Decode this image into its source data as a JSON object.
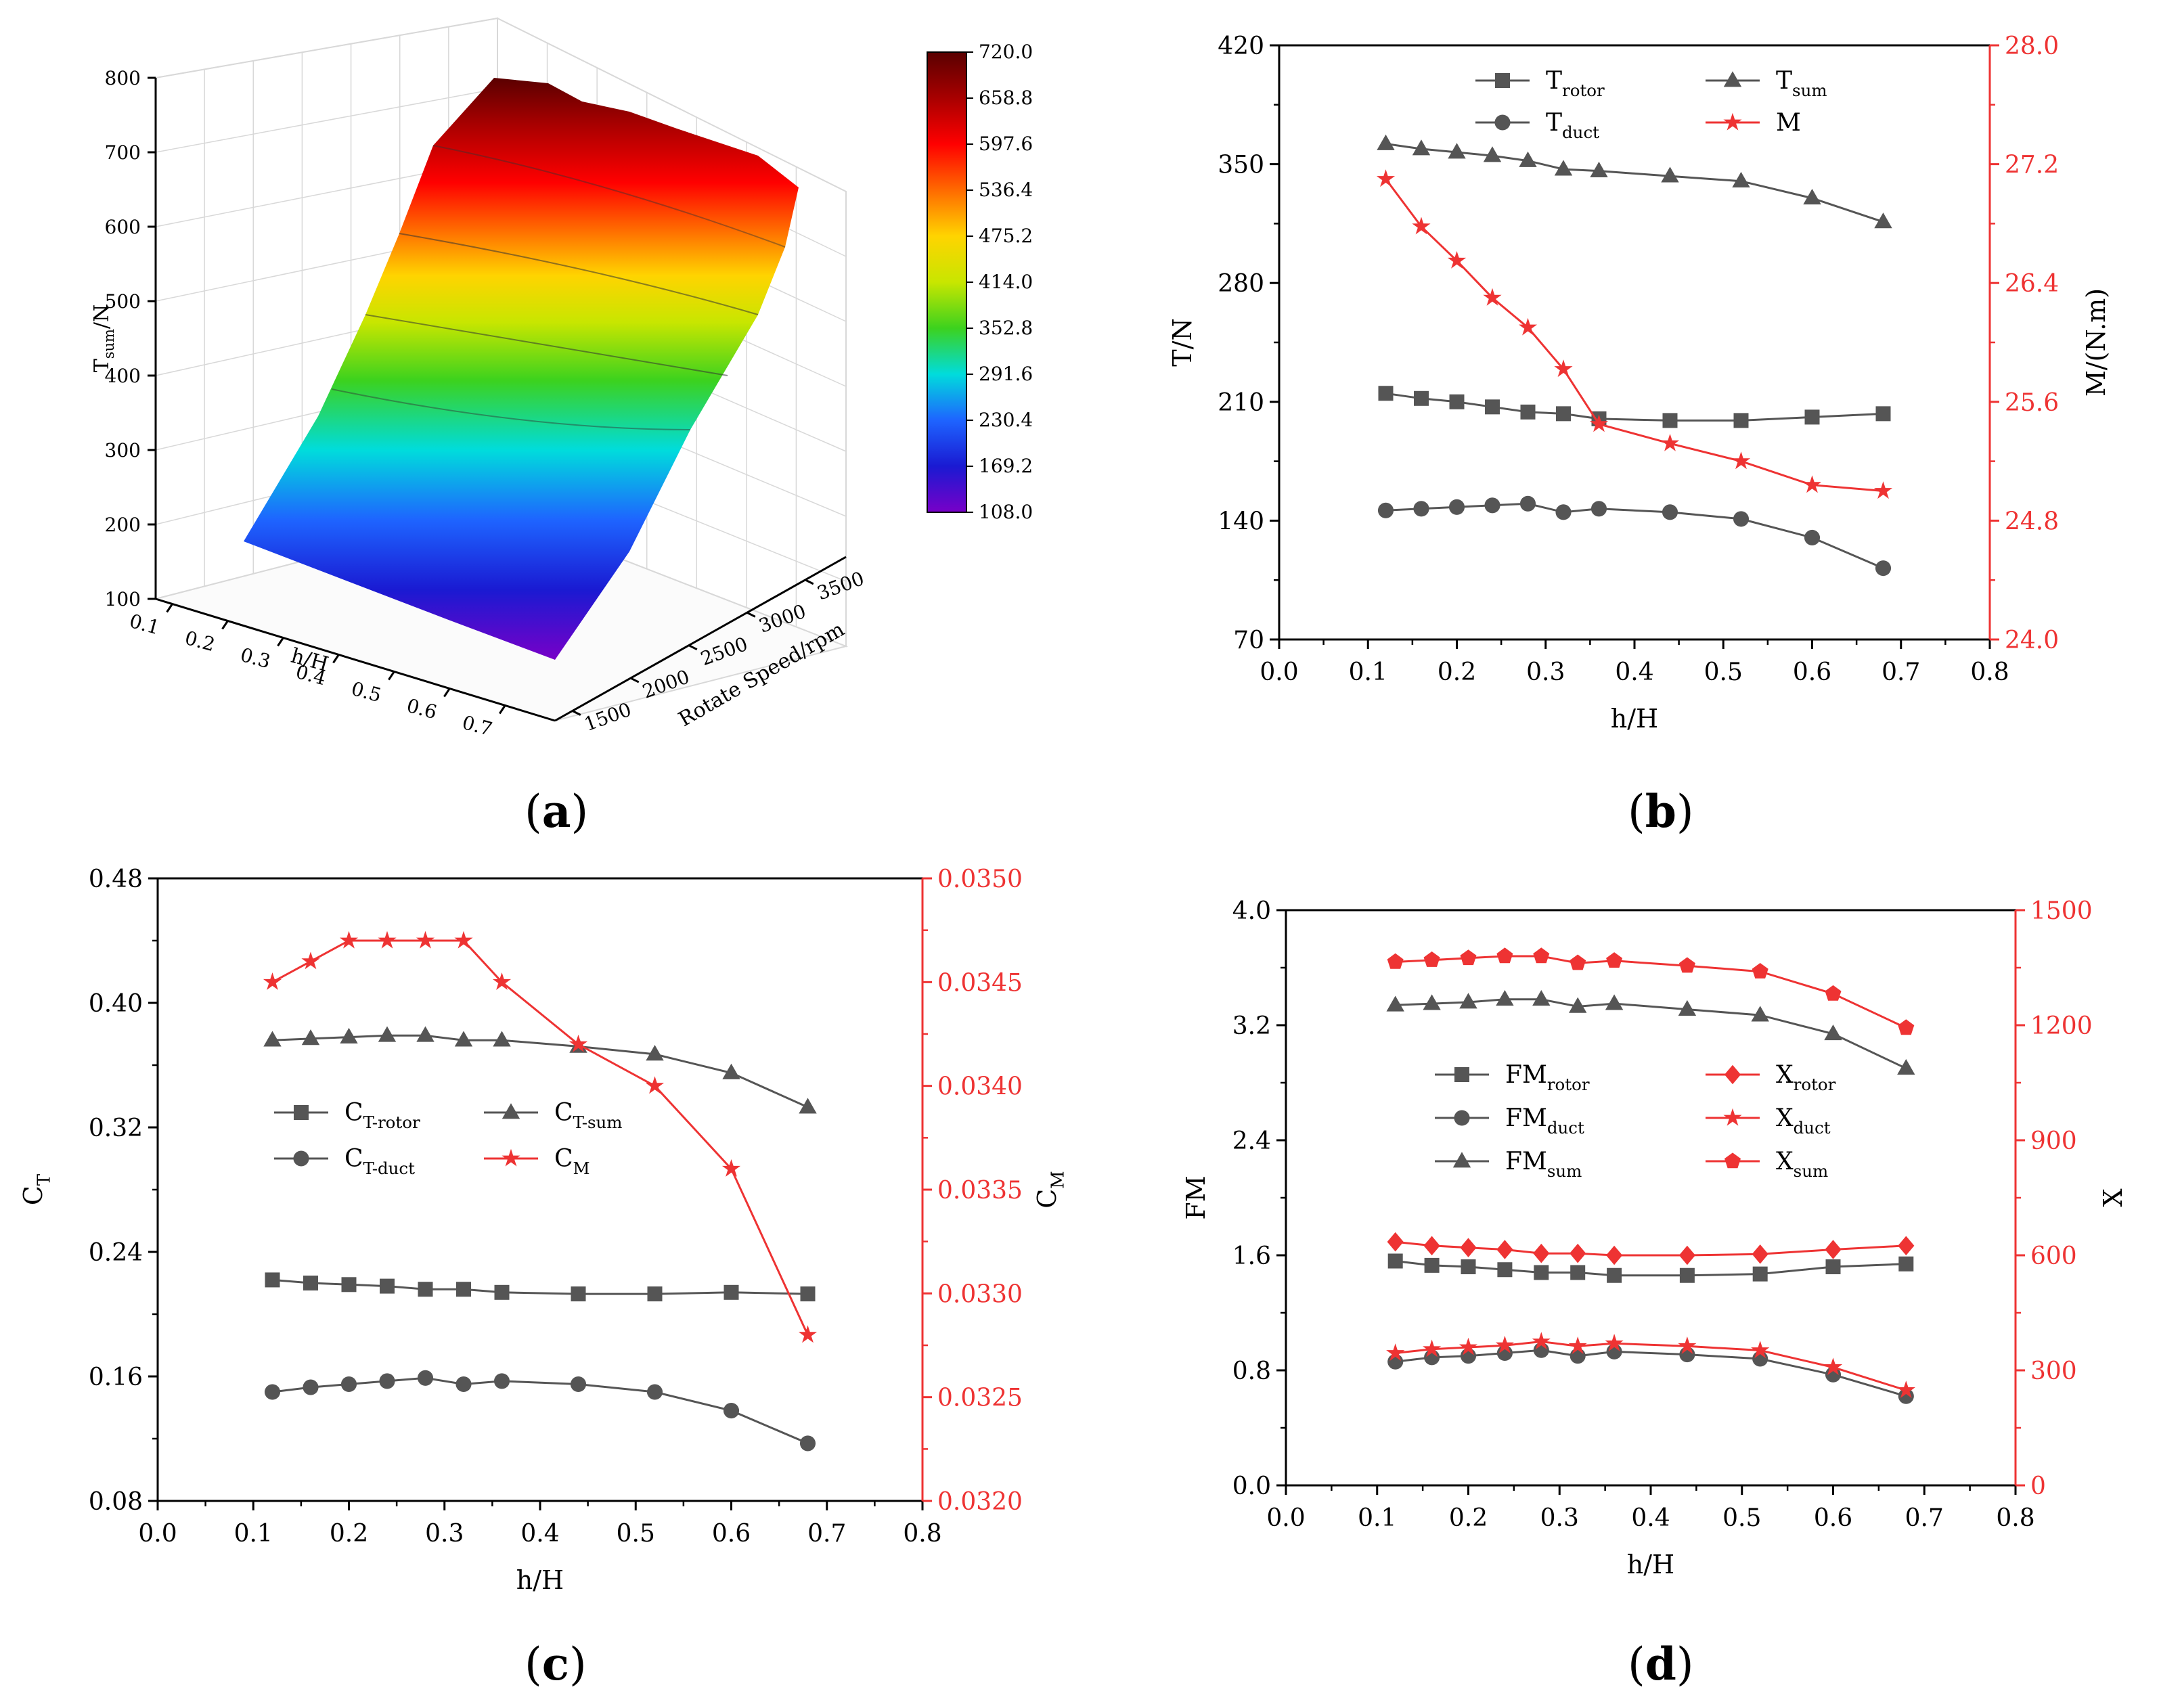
{
  "panels": {
    "a": {
      "label": "a",
      "chart_data": {
        "type": "surface3d",
        "title": "",
        "xlabel": "h/H",
        "ylabel": "Rotate Speed/rpm",
        "zlabel": "T_sum/N",
        "xticks": [
          "0.1",
          "0.2",
          "0.3",
          "0.4",
          "0.5",
          "0.6",
          "0.7"
        ],
        "yticks": [
          "1500",
          "2000",
          "2500",
          "3000",
          "3500"
        ],
        "zticks": [
          "100",
          "200",
          "300",
          "400",
          "500",
          "600",
          "700",
          "800"
        ],
        "colorbar_ticks": [
          "720.0",
          "658.8",
          "597.6",
          "536.4",
          "475.2",
          "414.0",
          "352.8",
          "291.6",
          "230.4",
          "169.2",
          "108.0"
        ],
        "colorbar_range": [
          108.0,
          720.0
        ],
        "colors": [
          "#5a0000",
          "#a80000",
          "#ff0000",
          "#ff6a00",
          "#ffd400",
          "#c8e600",
          "#3cd21e",
          "#00dcdc",
          "#1e64ff",
          "#1a1ad2",
          "#7800c8"
        ]
      }
    },
    "b": {
      "label": "b",
      "chart_data": {
        "type": "line",
        "xlabel": "h/H",
        "ylabel": "T/N",
        "ylabel_right": "M/(N.m)",
        "xlim": [
          0.0,
          0.8
        ],
        "ylim": [
          70,
          420
        ],
        "ylim_right": [
          24.0,
          28.0
        ],
        "xticks": [
          "0.0",
          "0.1",
          "0.2",
          "0.3",
          "0.4",
          "0.5",
          "0.6",
          "0.7",
          "0.8"
        ],
        "yticks": [
          "70",
          "140",
          "210",
          "280",
          "350",
          "420"
        ],
        "yticks_right": [
          "24.0",
          "24.8",
          "25.6",
          "26.4",
          "27.2",
          "28.0"
        ],
        "x": [
          0.12,
          0.16,
          0.2,
          0.24,
          0.28,
          0.32,
          0.36,
          0.44,
          0.52,
          0.6,
          0.68
        ],
        "series": [
          {
            "name": "T",
            "sub": "rotor",
            "axis": "left",
            "marker": "square",
            "color": "#555555",
            "values": [
              215,
              212,
              210,
              207,
              204,
              203,
              200,
              199,
              199,
              201,
              203
            ]
          },
          {
            "name": "T",
            "sub": "duct",
            "axis": "left",
            "marker": "circle",
            "color": "#555555",
            "values": [
              146,
              147,
              148,
              149,
              150,
              145,
              147,
              145,
              141,
              130,
              112
            ]
          },
          {
            "name": "T",
            "sub": "sum",
            "axis": "left",
            "marker": "triangle",
            "color": "#555555",
            "values": [
              362,
              359,
              357,
              355,
              352,
              347,
              346,
              343,
              340,
              330,
              316
            ]
          },
          {
            "name": "M",
            "sub": "",
            "axis": "right",
            "marker": "star",
            "color": "#ee3333",
            "values": [
              27.1,
              26.78,
              26.55,
              26.3,
              26.1,
              25.82,
              25.45,
              25.32,
              25.2,
              25.04,
              25.0
            ]
          }
        ]
      }
    },
    "c": {
      "label": "c",
      "chart_data": {
        "type": "line",
        "xlabel": "h/H",
        "ylabel": "C",
        "ylabel_sub": "T",
        "ylabel_right": "C",
        "ylabel_right_sub": "M",
        "xlim": [
          0.0,
          0.8
        ],
        "ylim": [
          0.08,
          0.48
        ],
        "ylim_right": [
          0.032,
          0.035
        ],
        "xticks": [
          "0.0",
          "0.1",
          "0.2",
          "0.3",
          "0.4",
          "0.5",
          "0.6",
          "0.7",
          "0.8"
        ],
        "yticks": [
          "0.08",
          "0.16",
          "0.24",
          "0.32",
          "0.40",
          "0.48"
        ],
        "yticks_right": [
          "0.0320",
          "0.0325",
          "0.0330",
          "0.0335",
          "0.0340",
          "0.0345",
          "0.0350"
        ],
        "x": [
          0.12,
          0.16,
          0.2,
          0.24,
          0.28,
          0.32,
          0.36,
          0.44,
          0.52,
          0.6,
          0.68
        ],
        "series": [
          {
            "name": "C",
            "sub": "T-rotor",
            "axis": "left",
            "marker": "square",
            "color": "#555555",
            "values": [
              0.222,
              0.22,
              0.219,
              0.218,
              0.216,
              0.216,
              0.214,
              0.213,
              0.213,
              0.214,
              0.213
            ]
          },
          {
            "name": "C",
            "sub": "T-duct",
            "axis": "left",
            "marker": "circle",
            "color": "#555555",
            "values": [
              0.15,
              0.153,
              0.155,
              0.157,
              0.159,
              0.155,
              0.157,
              0.155,
              0.15,
              0.138,
              0.117
            ]
          },
          {
            "name": "C",
            "sub": "T-sum",
            "axis": "left",
            "marker": "triangle",
            "color": "#555555",
            "values": [
              0.376,
              0.377,
              0.378,
              0.379,
              0.379,
              0.376,
              0.376,
              0.372,
              0.367,
              0.355,
              0.333
            ]
          },
          {
            "name": "C",
            "sub": "M",
            "axis": "right",
            "marker": "star",
            "color": "#ee3333",
            "values": [
              0.0345,
              0.0346,
              0.0347,
              0.0347,
              0.0347,
              0.0347,
              0.0345,
              0.0342,
              0.034,
              0.0336,
              0.0328
            ]
          }
        ]
      }
    },
    "d": {
      "label": "d",
      "chart_data": {
        "type": "line",
        "xlabel": "h/H",
        "ylabel": "FM",
        "ylabel_right": "X",
        "xlim": [
          0.0,
          0.8
        ],
        "ylim": [
          0.0,
          4.0
        ],
        "ylim_right": [
          0,
          1500
        ],
        "xticks": [
          "0.0",
          "0.1",
          "0.2",
          "0.3",
          "0.4",
          "0.5",
          "0.6",
          "0.7",
          "0.8"
        ],
        "yticks": [
          "0.0",
          "0.8",
          "1.6",
          "2.4",
          "3.2",
          "4.0"
        ],
        "yticks_right": [
          "0",
          "300",
          "600",
          "900",
          "1200",
          "1500"
        ],
        "x": [
          0.12,
          0.16,
          0.2,
          0.24,
          0.28,
          0.32,
          0.36,
          0.44,
          0.52,
          0.6,
          0.68
        ],
        "series": [
          {
            "name": "FM",
            "sub": "rotor",
            "axis": "left",
            "marker": "square",
            "color": "#555555",
            "values": [
              1.56,
              1.53,
              1.52,
              1.5,
              1.48,
              1.48,
              1.46,
              1.46,
              1.47,
              1.52,
              1.54
            ]
          },
          {
            "name": "FM",
            "sub": "duct",
            "axis": "left",
            "marker": "circle",
            "color": "#555555",
            "values": [
              0.86,
              0.89,
              0.9,
              0.92,
              0.94,
              0.9,
              0.93,
              0.91,
              0.88,
              0.77,
              0.62
            ]
          },
          {
            "name": "FM",
            "sub": "sum",
            "axis": "left",
            "marker": "triangle",
            "color": "#555555",
            "values": [
              3.34,
              3.35,
              3.36,
              3.38,
              3.38,
              3.33,
              3.35,
              3.31,
              3.27,
              3.14,
              2.9
            ]
          },
          {
            "name": "X",
            "sub": "rotor",
            "axis": "right",
            "marker": "diamond",
            "color": "#ee3333",
            "values": [
              635,
              625,
              620,
              615,
              605,
              605,
              600,
              600,
              603,
              615,
              625
            ]
          },
          {
            "name": "X",
            "sub": "duct",
            "axis": "right",
            "marker": "star",
            "color": "#ee3333",
            "values": [
              345,
              355,
              360,
              365,
              375,
              363,
              370,
              363,
              352,
              308,
              248
            ]
          },
          {
            "name": "X",
            "sub": "sum",
            "axis": "right",
            "marker": "pentagon",
            "color": "#ee3333",
            "values": [
              1365,
              1370,
              1375,
              1380,
              1380,
              1362,
              1368,
              1355,
              1340,
              1282,
              1193
            ]
          }
        ]
      }
    }
  }
}
